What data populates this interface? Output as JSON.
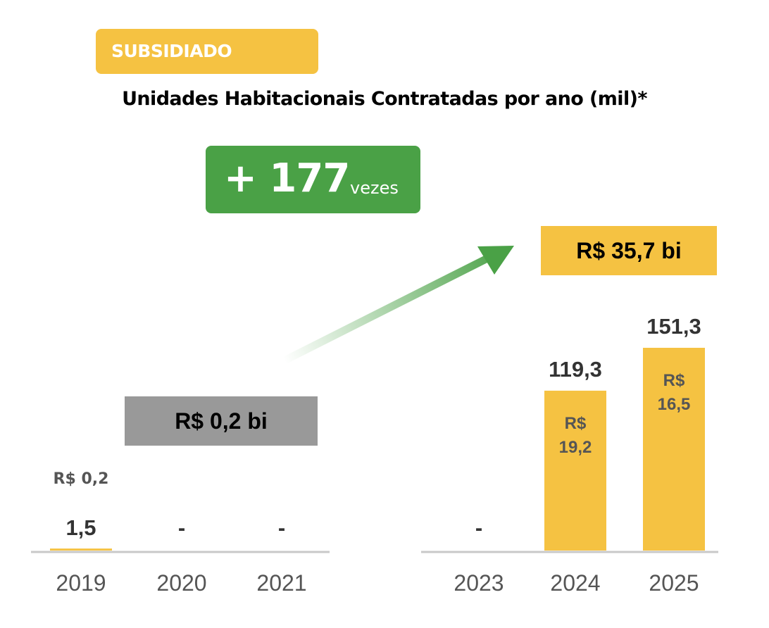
{
  "tag": "SUBSIDIADO",
  "title": "Unidades Habitacionais Contratadas por ano (mil)*",
  "growth": {
    "value": "+ 177",
    "unit": "vezes"
  },
  "totals": [
    {
      "id": "total-2019-2021",
      "label": "R$ 0,2 bi"
    },
    {
      "id": "total-2024-2025",
      "label": "R$ 35,7 bi"
    }
  ],
  "colors": {
    "accent": "#F5C242",
    "green": "#4AA146",
    "grey": "#999999",
    "axis": "#C8C8C8"
  },
  "chart_data": {
    "type": "bar",
    "title": "Unidades Habitacionais Contratadas por ano (mil)*",
    "categories": [
      "2019",
      "2020",
      "2021",
      "2023",
      "2024",
      "2025"
    ],
    "values": [
      1.5,
      null,
      null,
      null,
      119.3,
      151.3
    ],
    "value_labels": [
      "1,5",
      "-",
      "-",
      "-",
      "119,3",
      "151,3"
    ],
    "sub_labels": [
      [
        "R$ 0,2"
      ],
      [],
      [],
      [],
      [
        "R$",
        "19,2"
      ],
      [
        "R$",
        "16,5"
      ]
    ],
    "ylim": [
      0,
      151.3
    ],
    "grid": false,
    "legend": "none"
  }
}
